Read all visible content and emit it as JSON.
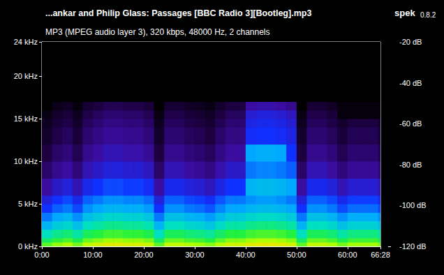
{
  "chart_data": {
    "type": "heatmap",
    "title": "...ankar and Philip Glass: Passages [BBC Radio 3][Bootleg].mp3",
    "subtitle": "MP3 (MPEG audio layer 3), 320 kbps, 48000 Hz, 2 channels",
    "annotations": [
      "spek",
      "0.8.2"
    ],
    "xlim": [
      0,
      3988
    ],
    "xticks": [
      {
        "value": 0,
        "label": "0:00"
      },
      {
        "value": 600,
        "label": "10:00"
      },
      {
        "value": 1200,
        "label": "20:00"
      },
      {
        "value": 1800,
        "label": "30:00"
      },
      {
        "value": 2400,
        "label": "40:00"
      },
      {
        "value": 3000,
        "label": "50:00"
      },
      {
        "value": 3600,
        "label": "60:00"
      },
      {
        "value": 3988,
        "label": "66:28"
      }
    ],
    "ylim": [
      0,
      24
    ],
    "yticks": [
      {
        "value": 0,
        "label": "0 kHz"
      },
      {
        "value": 5,
        "label": "5 kHz"
      },
      {
        "value": 10,
        "label": "10 kHz"
      },
      {
        "value": 15,
        "label": "15 kHz"
      },
      {
        "value": 20,
        "label": "20 kHz"
      },
      {
        "value": 24,
        "label": "24 kHz"
      }
    ],
    "x_bins": [
      0,
      120,
      240,
      360,
      480,
      600,
      720,
      840,
      960,
      1080,
      1200,
      1320,
      1440,
      1560,
      1680,
      1800,
      1920,
      2040,
      2160,
      2280,
      2400,
      2520,
      2640,
      2760,
      2880,
      3000,
      3120,
      3240,
      3360,
      3480,
      3600,
      3720,
      3840,
      3960,
      3988
    ],
    "y_bins": [
      0,
      0.5,
      1,
      2,
      3,
      4,
      5,
      6,
      8,
      10,
      12,
      14,
      15,
      16,
      17,
      24
    ],
    "cells": [
      [
        -56,
        -52,
        -50,
        -54,
        -48,
        -46,
        -44,
        -44,
        -45,
        -45,
        -47,
        -56,
        -48,
        -48,
        -50,
        -51,
        -53,
        -49,
        -46,
        -46,
        -44,
        -43,
        -43,
        -44,
        -46,
        -56,
        -48,
        -48,
        -50,
        -54,
        -51,
        -51,
        -51,
        -54
      ],
      [
        -63,
        -59,
        -57,
        -61,
        -55,
        -53,
        -51,
        -51,
        -52,
        -52,
        -54,
        -63,
        -55,
        -55,
        -57,
        -58,
        -60,
        -56,
        -53,
        -53,
        -51,
        -50,
        -50,
        -51,
        -53,
        -63,
        -55,
        -55,
        -57,
        -61,
        -58,
        -58,
        -58,
        -61
      ],
      [
        -70,
        -66,
        -64,
        -68,
        -62,
        -60,
        -58,
        -58,
        -59,
        -59,
        -61,
        -70,
        -62,
        -62,
        -64,
        -65,
        -67,
        -63,
        -60,
        -60,
        -58,
        -57,
        -57,
        -58,
        -60,
        -70,
        -62,
        -62,
        -64,
        -68,
        -65,
        -65,
        -65,
        -68
      ],
      [
        -78,
        -74,
        -72,
        -76,
        -70,
        -68,
        -66,
        -66,
        -67,
        -67,
        -69,
        -78,
        -70,
        -70,
        -72,
        -73,
        -75,
        -71,
        -68,
        -68,
        -66,
        -65,
        -65,
        -66,
        -68,
        -78,
        -70,
        -70,
        -72,
        -76,
        -73,
        -73,
        -73,
        -76
      ],
      [
        -84,
        -80,
        -78,
        -82,
        -76,
        -74,
        -72,
        -72,
        -73,
        -73,
        -75,
        -84,
        -76,
        -76,
        -78,
        -79,
        -81,
        -77,
        -74,
        -74,
        -72,
        -71,
        -71,
        -72,
        -74,
        -84,
        -76,
        -76,
        -78,
        -82,
        -79,
        -79,
        -79,
        -82
      ],
      [
        -90,
        -86,
        -84,
        -88,
        -82,
        -80,
        -78,
        -78,
        -79,
        -79,
        -81,
        -90,
        -82,
        -82,
        -84,
        -85,
        -87,
        -83,
        -80,
        -80,
        -78,
        -77,
        -77,
        -78,
        -80,
        -90,
        -82,
        -82,
        -84,
        -88,
        -85,
        -85,
        -85,
        -88
      ],
      [
        -94,
        -90,
        -88,
        -92,
        -86,
        -84,
        -82,
        -82,
        -83,
        -83,
        -85,
        -94,
        -86,
        -86,
        -88,
        -89,
        -91,
        -87,
        -84,
        -84,
        -82,
        -81,
        -81,
        -82,
        -84,
        -94,
        -86,
        -86,
        -88,
        -92,
        -89,
        -89,
        -89,
        -92
      ],
      [
        -100,
        -96,
        -94,
        -98,
        -92,
        -90,
        -88,
        -88,
        -89,
        -89,
        -91,
        -100,
        -92,
        -92,
        -94,
        -95,
        -97,
        -93,
        -90,
        -90,
        -78,
        -77,
        -77,
        -78,
        -80,
        -100,
        -92,
        -92,
        -94,
        -98,
        -95,
        -95,
        -95,
        -98
      ],
      [
        -106,
        -102,
        -100,
        -104,
        -98,
        -96,
        -94,
        -94,
        -95,
        -95,
        -97,
        -106,
        -98,
        -98,
        -100,
        -101,
        -103,
        -99,
        -96,
        -96,
        -84,
        -83,
        -83,
        -84,
        -86,
        -106,
        -98,
        -98,
        -100,
        -104,
        -101,
        -101,
        -101,
        -104
      ],
      [
        -110,
        -106,
        -104,
        -108,
        -102,
        -100,
        -98,
        -98,
        -99,
        -99,
        -101,
        -110,
        -102,
        -102,
        -104,
        -105,
        -107,
        -103,
        -100,
        -100,
        -80,
        -79,
        -79,
        -80,
        -90,
        -110,
        -102,
        -102,
        -104,
        -108,
        -105,
        -105,
        -105,
        -108
      ],
      [
        -113,
        -109,
        -107,
        -111,
        -105,
        -103,
        -101,
        -101,
        -102,
        -102,
        -104,
        -113,
        -105,
        -105,
        -107,
        -108,
        -110,
        -106,
        -103,
        -103,
        -91,
        -90,
        -90,
        -91,
        -93,
        -113,
        -105,
        -105,
        -107,
        -111,
        -108,
        -108,
        -108,
        -111
      ],
      [
        -115,
        -111,
        -109,
        -113,
        -107,
        -105,
        -103,
        -103,
        -104,
        -104,
        -106,
        -115,
        -107,
        -107,
        -109,
        -110,
        -112,
        -108,
        -105,
        -105,
        -93,
        -92,
        -92,
        -93,
        -95,
        -115,
        -107,
        -107,
        -109,
        -113,
        -110,
        -110,
        -110,
        -113
      ],
      [
        -117,
        -113,
        -111,
        -115,
        -109,
        -107,
        -105,
        -105,
        -106,
        -106,
        -108,
        -117,
        -109,
        -109,
        -111,
        -112,
        -114,
        -110,
        -107,
        -107,
        -95,
        -94,
        -94,
        -95,
        -97,
        -117,
        -109,
        -109,
        -111,
        -118,
        -118,
        -118,
        -118,
        -118
      ],
      [
        -120,
        -116,
        -114,
        -118,
        -112,
        -110,
        -108,
        -108,
        -109,
        -109,
        -111,
        -120,
        -112,
        -112,
        -114,
        -115,
        -117,
        -113,
        -110,
        -110,
        -100,
        -99,
        -99,
        -100,
        -102,
        -120,
        -112,
        -112,
        -114,
        -118,
        -118,
        -118,
        -118,
        -118
      ],
      [
        -120,
        -120,
        -120,
        -120,
        -120,
        -120,
        -120,
        -120,
        -120,
        -120,
        -120,
        -120,
        -120,
        -120,
        -120,
        -120,
        -120,
        -120,
        -120,
        -120,
        -120,
        -120,
        -120,
        -120,
        -120,
        -120,
        -120,
        -120,
        -120,
        -120,
        -120,
        -120,
        -120,
        -120
      ]
    ],
    "colorbar_range": [
      -120,
      -20
    ],
    "colorbar_ticks": [
      {
        "value": -20,
        "label": "-20 dB"
      },
      {
        "value": -40,
        "label": "-40 dB"
      },
      {
        "value": -60,
        "label": "-60 dB"
      },
      {
        "value": -80,
        "label": "-80 dB"
      },
      {
        "value": -100,
        "label": "-100 dB"
      },
      {
        "value": -120,
        "label": "-120 dB"
      }
    ]
  }
}
